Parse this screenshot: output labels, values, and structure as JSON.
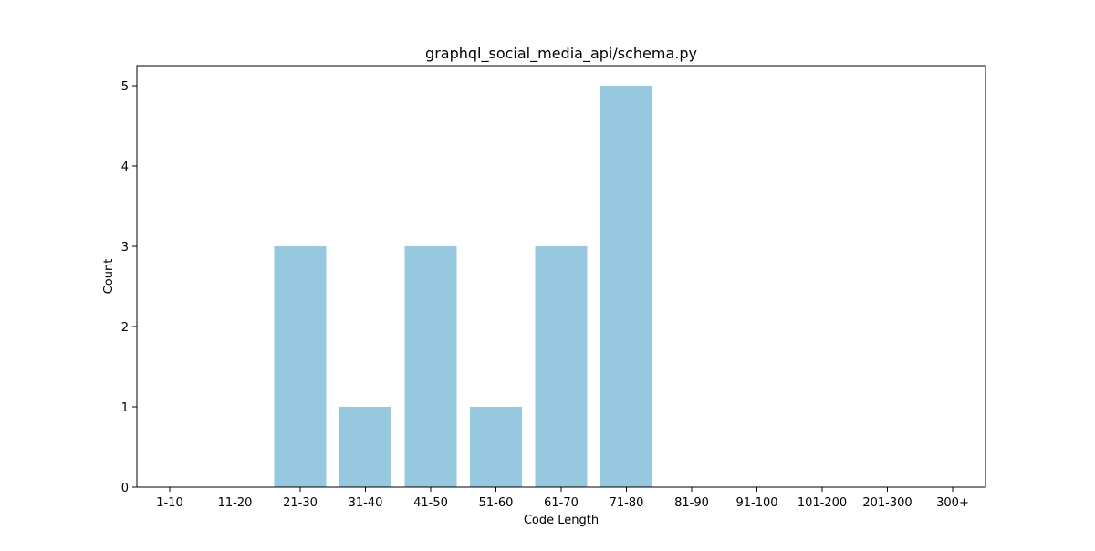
{
  "chart_data": {
    "type": "bar",
    "title": "graphql_social_media_api/schema.py",
    "xlabel": "Code Length",
    "ylabel": "Count",
    "categories": [
      "1-10",
      "11-20",
      "21-30",
      "31-40",
      "41-50",
      "51-60",
      "61-70",
      "71-80",
      "81-90",
      "91-100",
      "101-200",
      "201-300",
      "300+"
    ],
    "values": [
      0,
      0,
      3,
      1,
      3,
      1,
      3,
      5,
      0,
      0,
      0,
      0,
      0
    ],
    "yticks": [
      0,
      1,
      2,
      3,
      4,
      5
    ],
    "ylim": [
      0,
      5.25
    ],
    "grid": false,
    "legend": "none",
    "bar_color": "#96c9df"
  }
}
